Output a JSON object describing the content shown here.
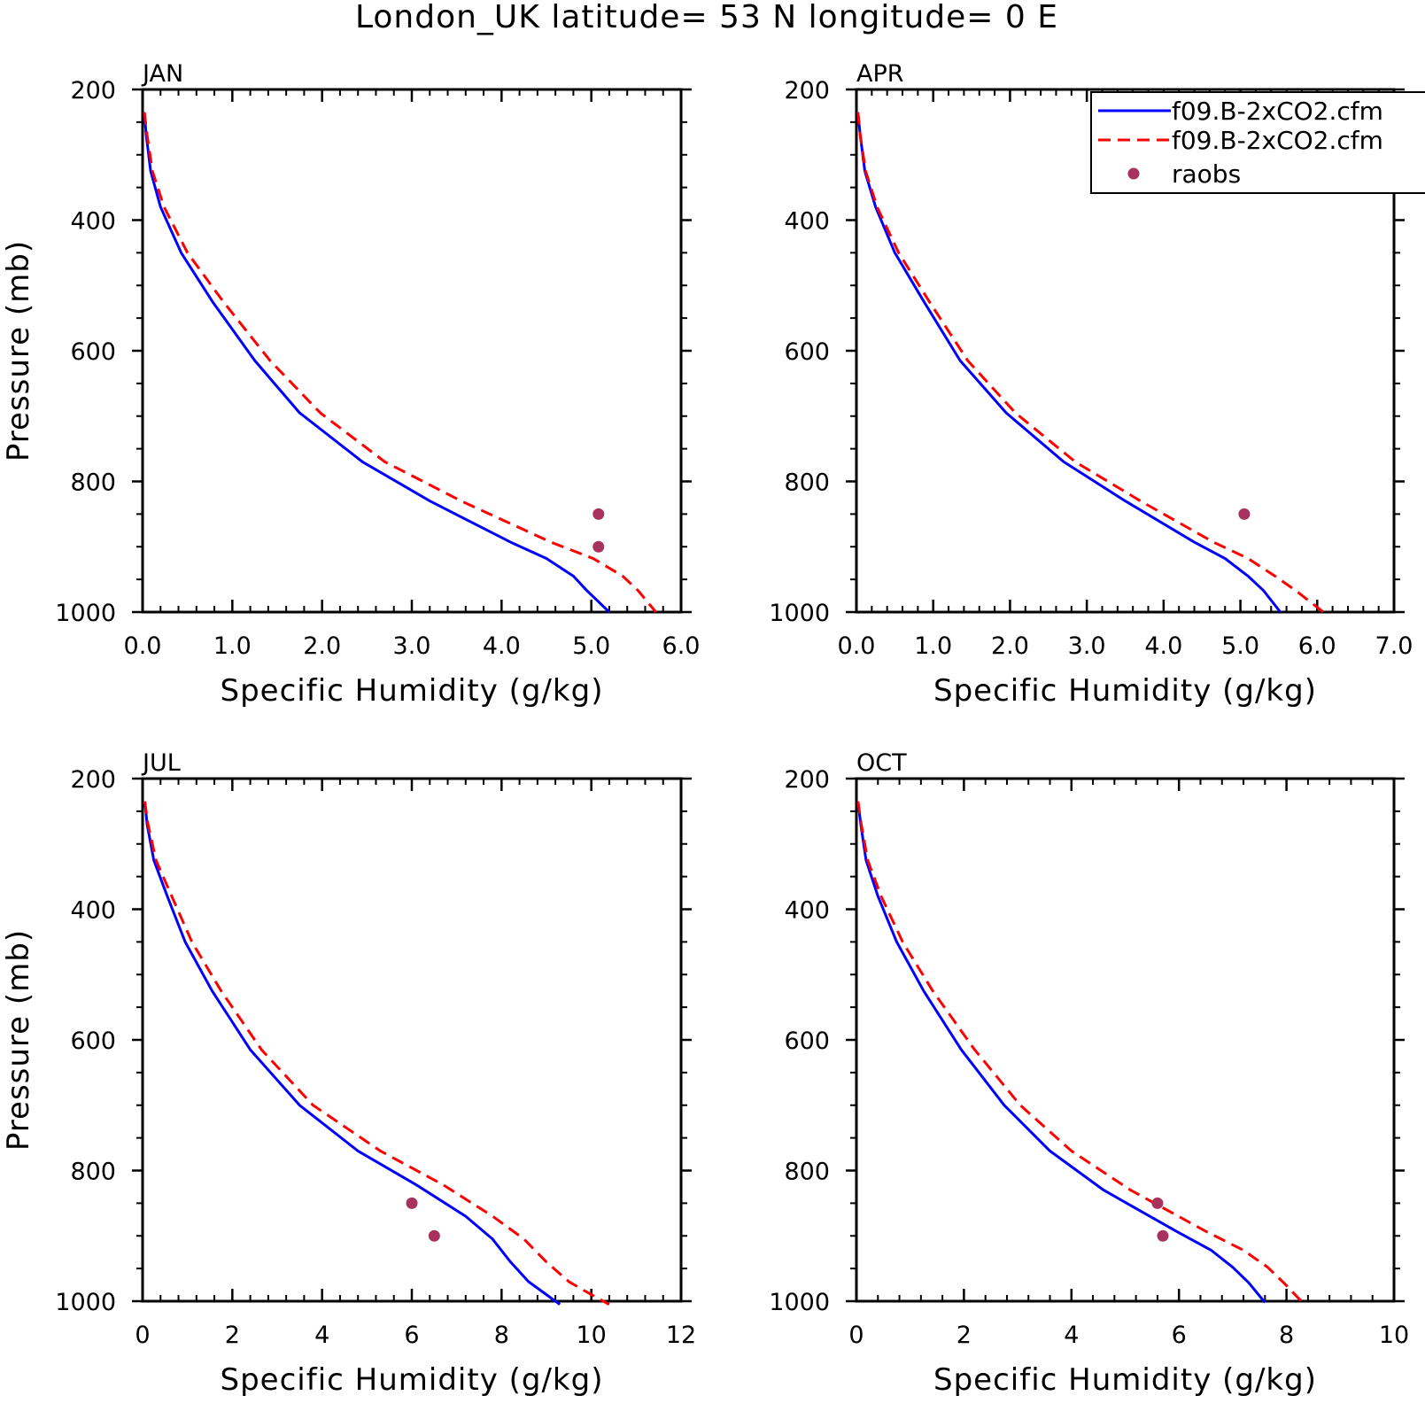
{
  "figure": {
    "title": "London_UK  latitude= 53 N longitude= 0 E"
  },
  "legend": {
    "placement": "top-right of APR panel",
    "entries": [
      {
        "label": "f09.B-2xCO2.cfm",
        "style": "solid",
        "color": "#0000ff"
      },
      {
        "label": "f09.B-2xCO2.cfm",
        "style": "dashed",
        "color": "#ff0000"
      },
      {
        "label": "raobs",
        "style": "marker",
        "color": "#a8325e"
      }
    ]
  },
  "chart_data": [
    {
      "type": "line",
      "panel": "JAN",
      "xlabel": "Specific Humidity (g/kg)",
      "ylabel": "Pressure (mb)",
      "xlim": [
        0,
        6
      ],
      "ylim": [
        1000,
        200
      ],
      "y_reversed": true,
      "xticks": [
        "0.0",
        "1.0",
        "2.0",
        "3.0",
        "4.0",
        "5.0",
        "6.0"
      ],
      "yticks": [
        "200",
        "400",
        "600",
        "800",
        "1000"
      ],
      "series": [
        {
          "name": "f09.B-2xCO2.cfm",
          "x": [
            0.02,
            0.04,
            0.09,
            0.2,
            0.43,
            0.78,
            1.25,
            1.75,
            2.45,
            3.2,
            4.1,
            4.5,
            4.8,
            4.95,
            5.2
          ],
          "y": [
            235,
            270,
            325,
            380,
            450,
            525,
            615,
            695,
            770,
            830,
            893,
            918,
            945,
            967,
            1000
          ]
        },
        {
          "name": "f09.B-2xCO2.cfm",
          "x": [
            0.02,
            0.05,
            0.11,
            0.24,
            0.5,
            0.9,
            1.42,
            1.98,
            2.7,
            3.55,
            4.55,
            5.02,
            5.35,
            5.52,
            5.72
          ],
          "y": [
            235,
            270,
            325,
            380,
            450,
            525,
            615,
            695,
            770,
            830,
            893,
            918,
            945,
            967,
            1000
          ]
        },
        {
          "name": "raobs",
          "x": [
            5.08,
            5.08
          ],
          "y": [
            850,
            900
          ]
        }
      ]
    },
    {
      "type": "line",
      "panel": "APR",
      "xlabel": "Specific Humidity (g/kg)",
      "ylabel": "",
      "xlim": [
        0,
        7
      ],
      "ylim": [
        1000,
        200
      ],
      "y_reversed": true,
      "xticks": [
        "0.0",
        "1.0",
        "2.0",
        "3.0",
        "4.0",
        "5.0",
        "6.0",
        "7.0"
      ],
      "yticks": [
        "200",
        "400",
        "600",
        "800",
        "1000"
      ],
      "series": [
        {
          "name": "f09.B-2xCO2.cfm",
          "x": [
            0.02,
            0.05,
            0.11,
            0.25,
            0.5,
            0.88,
            1.35,
            1.95,
            2.7,
            3.5,
            4.4,
            4.8,
            5.1,
            5.3,
            5.52
          ],
          "y": [
            235,
            270,
            325,
            380,
            450,
            525,
            615,
            695,
            770,
            830,
            893,
            918,
            945,
            967,
            1000
          ]
        },
        {
          "name": "f09.B-2xCO2.cfm",
          "x": [
            0.02,
            0.05,
            0.12,
            0.27,
            0.55,
            0.95,
            1.45,
            2.07,
            2.85,
            3.7,
            4.65,
            5.1,
            5.45,
            5.72,
            6.08
          ],
          "y": [
            235,
            270,
            325,
            380,
            450,
            525,
            615,
            695,
            770,
            830,
            893,
            918,
            945,
            967,
            1000
          ]
        },
        {
          "name": "raobs",
          "x": [
            5.05
          ],
          "y": [
            850
          ]
        }
      ]
    },
    {
      "type": "line",
      "panel": "JUL",
      "xlabel": "Specific Humidity (g/kg)",
      "ylabel": "Pressure (mb)",
      "xlim": [
        0,
        12
      ],
      "ylim": [
        1000,
        200
      ],
      "y_reversed": true,
      "xticks": [
        "0",
        "2",
        "4",
        "6",
        "8",
        "10",
        "12"
      ],
      "yticks": [
        "200",
        "400",
        "600",
        "800",
        "1000"
      ],
      "series": [
        {
          "name": "f09.B-2xCO2.cfm",
          "x": [
            0.05,
            0.1,
            0.25,
            0.55,
            0.95,
            1.55,
            2.4,
            3.5,
            4.8,
            6.1,
            7.2,
            7.8,
            8.2,
            8.6,
            9.0,
            9.3
          ],
          "y": [
            235,
            270,
            325,
            380,
            450,
            525,
            615,
            700,
            770,
            822,
            870,
            905,
            940,
            970,
            990,
            1005
          ]
        },
        {
          "name": "f09.B-2xCO2.cfm",
          "x": [
            0.05,
            0.12,
            0.3,
            0.65,
            1.1,
            1.75,
            2.65,
            3.8,
            5.3,
            6.7,
            7.8,
            8.5,
            9.0,
            9.5,
            10.0,
            10.4
          ],
          "y": [
            235,
            270,
            325,
            380,
            450,
            525,
            615,
            700,
            770,
            822,
            870,
            905,
            940,
            970,
            990,
            1005
          ]
        },
        {
          "name": "raobs",
          "x": [
            6.0,
            6.5
          ],
          "y": [
            850,
            900
          ]
        }
      ]
    },
    {
      "type": "line",
      "panel": "OCT",
      "xlabel": "Specific Humidity (g/kg)",
      "ylabel": "",
      "xlim": [
        0,
        10
      ],
      "ylim": [
        1000,
        200
      ],
      "y_reversed": true,
      "xticks": [
        "0",
        "2",
        "4",
        "6",
        "8",
        "10"
      ],
      "yticks": [
        "200",
        "400",
        "600",
        "800",
        "1000"
      ],
      "series": [
        {
          "name": "f09.B-2xCO2.cfm",
          "x": [
            0.03,
            0.08,
            0.18,
            0.4,
            0.75,
            1.25,
            1.95,
            2.75,
            3.6,
            4.6,
            5.95,
            6.6,
            7.0,
            7.3,
            7.6
          ],
          "y": [
            235,
            270,
            325,
            380,
            450,
            525,
            615,
            700,
            770,
            830,
            893,
            922,
            948,
            972,
            1002
          ]
        },
        {
          "name": "f09.B-2xCO2.cfm",
          "x": [
            0.03,
            0.09,
            0.21,
            0.46,
            0.86,
            1.42,
            2.2,
            3.05,
            4.0,
            5.1,
            6.5,
            7.2,
            7.65,
            7.95,
            8.3
          ],
          "y": [
            235,
            270,
            325,
            380,
            450,
            525,
            615,
            700,
            770,
            830,
            893,
            922,
            948,
            972,
            1002
          ]
        },
        {
          "name": "raobs",
          "x": [
            5.6,
            5.7
          ],
          "y": [
            850,
            900
          ]
        }
      ]
    }
  ]
}
